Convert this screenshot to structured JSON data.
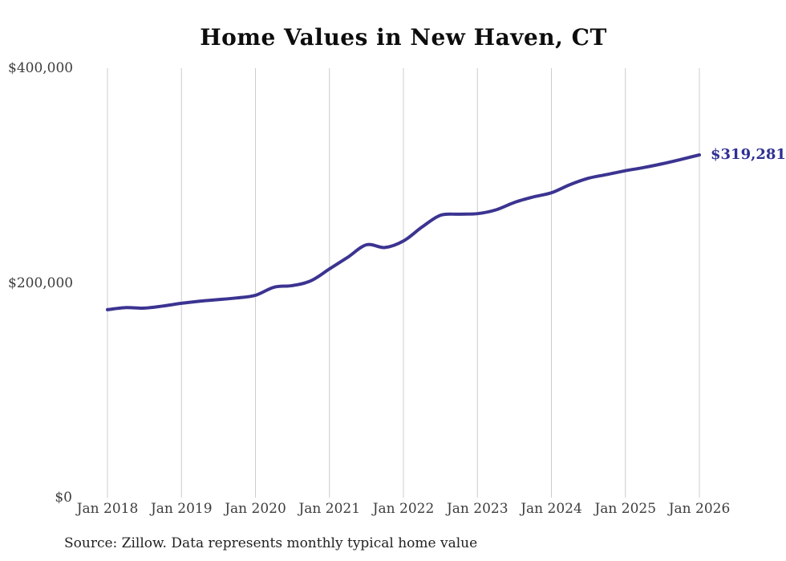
{
  "chart_data": {
    "type": "line",
    "title": "Home Values in New Haven, CT",
    "xlabel": "",
    "ylabel": "",
    "legend": "none",
    "grid": "vertical-yearly-only",
    "ylim": [
      0,
      400000
    ],
    "x_span_months": 96,
    "x_ticks": [
      "Jan 2018",
      "Jan 2019",
      "Jan 2020",
      "Jan 2021",
      "Jan 2022",
      "Jan 2023",
      "Jan 2024",
      "Jan 2025",
      "Jan 2026"
    ],
    "y_ticks": [
      {
        "label": "$0",
        "value": 0
      },
      {
        "label": "$200,000",
        "value": 200000
      },
      {
        "label": "$400,000",
        "value": 400000
      }
    ],
    "series": [
      {
        "name": "Monthly typical home value",
        "color": "#3b3491",
        "points_month_value": [
          [
            0,
            175000
          ],
          [
            3,
            177000
          ],
          [
            6,
            176500
          ],
          [
            9,
            178500
          ],
          [
            12,
            181000
          ],
          [
            15,
            183000
          ],
          [
            18,
            184500
          ],
          [
            21,
            186000
          ],
          [
            24,
            188500
          ],
          [
            27,
            196000
          ],
          [
            30,
            197500
          ],
          [
            33,
            202000
          ],
          [
            36,
            213000
          ],
          [
            39,
            224000
          ],
          [
            42,
            235500
          ],
          [
            45,
            233000
          ],
          [
            48,
            239000
          ],
          [
            51,
            252000
          ],
          [
            54,
            263000
          ],
          [
            57,
            264000
          ],
          [
            60,
            264500
          ],
          [
            63,
            268000
          ],
          [
            66,
            275000
          ],
          [
            69,
            280000
          ],
          [
            72,
            284000
          ],
          [
            75,
            291500
          ],
          [
            78,
            297500
          ],
          [
            81,
            301000
          ],
          [
            84,
            304500
          ],
          [
            87,
            307500
          ],
          [
            90,
            311000
          ],
          [
            93,
            315000
          ],
          [
            96,
            319281
          ]
        ]
      }
    ],
    "end_label": "$319,281",
    "end_value": 319281
  },
  "source_note": "Source: Zillow. Data represents monthly typical home value",
  "colors": {
    "line": "#3b3491",
    "end_label_text": "#2e3092",
    "gridline": "#cccccc",
    "axis_text": "#3d3d3d",
    "title_text": "#0d0d0d",
    "background": "#ffffff"
  }
}
